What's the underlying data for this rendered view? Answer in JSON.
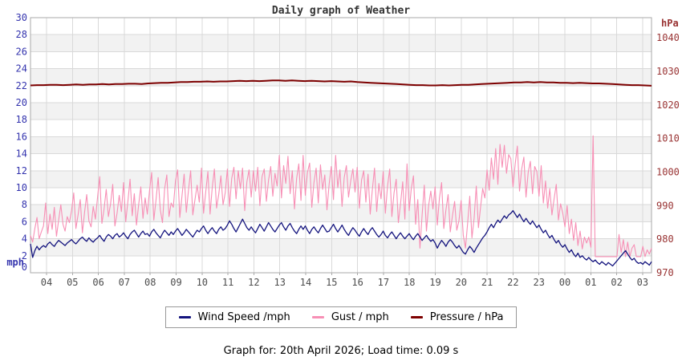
{
  "colors": {
    "band": "#f2f2f2",
    "grid": "#d9d9d9",
    "border": "#aaaaaa",
    "left_axis_text": "#3434ae",
    "right_axis_text": "#993333",
    "x_axis_text": "#4d4d4d",
    "title_text": "#333333",
    "wind": "#14147e",
    "gust": "#f78fb5",
    "pressure": "#7d0000"
  },
  "footer": {
    "caption": "Graph for: 20th April 2026; Load time: 0.09 s"
  },
  "chart_data": {
    "type": "line",
    "title": "Daily graph of Weather",
    "x_axis": {
      "labels": [
        "04",
        "05",
        "06",
        "07",
        "08",
        "09",
        "10",
        "11",
        "12",
        "13",
        "14",
        "15",
        "16",
        "17",
        "18",
        "19",
        "20",
        "21",
        "22",
        "23",
        "00",
        "01",
        "02",
        "03"
      ],
      "start_time": "03:30",
      "interval_minutes": 5
    },
    "y_left": {
      "unit": "mph",
      "min": 0,
      "max": 30,
      "tick_step": 2
    },
    "y_right": {
      "unit": "hPa",
      "min": 970,
      "max": 1046,
      "tick_step": 10,
      "tick_top": 1040
    },
    "series": [
      {
        "name": "Wind Speed /mph",
        "axis": "left",
        "color_key": "wind",
        "values": [
          3.4,
          1.8,
          2.6,
          3.1,
          2.7,
          3.0,
          3.2,
          3.0,
          3.4,
          3.6,
          3.3,
          3.1,
          3.5,
          3.8,
          3.6,
          3.4,
          3.2,
          3.5,
          3.7,
          3.9,
          3.6,
          3.4,
          3.7,
          4.0,
          4.2,
          3.9,
          3.7,
          4.1,
          3.8,
          3.6,
          3.9,
          4.1,
          4.4,
          4.0,
          3.7,
          4.2,
          4.5,
          4.3,
          4.0,
          4.4,
          4.6,
          4.2,
          4.4,
          4.7,
          4.3,
          4.0,
          4.5,
          4.8,
          5.0,
          4.6,
          4.2,
          4.6,
          4.9,
          4.5,
          4.6,
          4.3,
          4.8,
          5.1,
          4.7,
          4.4,
          4.1,
          4.6,
          5.0,
          4.7,
          4.4,
          4.8,
          4.5,
          4.9,
          5.2,
          4.8,
          4.4,
          4.7,
          5.1,
          4.8,
          4.5,
          4.2,
          4.6,
          5.0,
          4.8,
          5.2,
          5.5,
          5.0,
          4.6,
          5.0,
          5.3,
          4.9,
          4.6,
          5.1,
          5.4,
          5.0,
          5.2,
          5.6,
          6.1,
          5.7,
          5.2,
          4.8,
          5.3,
          5.8,
          6.3,
          5.8,
          5.3,
          5.0,
          5.4,
          5.0,
          4.7,
          5.2,
          5.7,
          5.3,
          4.9,
          5.4,
          5.9,
          5.5,
          5.1,
          4.8,
          5.2,
          5.6,
          5.9,
          5.4,
          5.0,
          5.5,
          5.8,
          5.3,
          4.9,
          4.6,
          5.1,
          5.5,
          5.1,
          5.5,
          5.0,
          4.6,
          5.1,
          5.4,
          5.0,
          4.7,
          5.2,
          5.6,
          5.2,
          4.8,
          4.9,
          5.3,
          5.7,
          5.2,
          4.8,
          5.2,
          5.6,
          5.1,
          4.7,
          4.4,
          4.9,
          5.3,
          5.0,
          4.6,
          4.3,
          4.8,
          5.2,
          4.8,
          4.5,
          5.0,
          5.3,
          4.9,
          4.5,
          4.2,
          4.5,
          4.9,
          4.4,
          4.1,
          4.5,
          4.8,
          4.4,
          4.0,
          4.4,
          4.7,
          4.3,
          4.0,
          4.3,
          4.6,
          4.2,
          3.9,
          4.3,
          4.6,
          4.2,
          3.8,
          4.1,
          4.4,
          4.0,
          3.7,
          3.9,
          3.5,
          2.9,
          3.4,
          3.8,
          3.5,
          3.1,
          3.6,
          3.9,
          3.6,
          3.2,
          2.9,
          3.2,
          2.8,
          2.4,
          2.2,
          2.7,
          3.1,
          2.8,
          2.4,
          2.9,
          3.3,
          3.7,
          4.1,
          4.4,
          4.8,
          5.3,
          5.7,
          5.3,
          5.8,
          6.2,
          5.9,
          6.3,
          6.7,
          6.4,
          6.8,
          7.0,
          7.3,
          6.9,
          6.5,
          6.9,
          6.4,
          6.0,
          6.4,
          6.0,
          5.7,
          6.1,
          5.7,
          5.3,
          5.6,
          5.1,
          4.7,
          5.0,
          4.5,
          4.1,
          4.4,
          3.9,
          3.5,
          3.8,
          3.3,
          3.0,
          3.3,
          2.8,
          2.4,
          2.7,
          2.2,
          1.9,
          2.3,
          1.8,
          2.0,
          1.7,
          1.5,
          1.8,
          1.5,
          1.3,
          1.5,
          1.2,
          1.0,
          1.3,
          1.1,
          0.9,
          1.2,
          1.0,
          0.8,
          1.1,
          1.4,
          1.7,
          2.0,
          2.3,
          2.6,
          2.2,
          1.8,
          1.5,
          1.7,
          1.3,
          1.1,
          1.2,
          1.0,
          1.3,
          1.1,
          0.9,
          1.3
        ]
      },
      {
        "name": "Gust / mph",
        "axis": "left",
        "color_key": "gust",
        "values": [
          4.4,
          3.6,
          5.2,
          6.5,
          4.0,
          4.8,
          5.5,
          8.2,
          4.6,
          6.9,
          5.1,
          7.7,
          4.3,
          6.2,
          8.0,
          5.7,
          4.9,
          6.6,
          5.9,
          7.3,
          9.4,
          5.2,
          6.8,
          8.6,
          4.7,
          7.1,
          9.2,
          6.1,
          5.4,
          7.8,
          6.3,
          8.9,
          11.3,
          5.8,
          7.5,
          9.8,
          6.6,
          8.1,
          10.4,
          5.5,
          7.0,
          9.1,
          7.2,
          10.6,
          6.0,
          8.4,
          11.0,
          6.7,
          9.3,
          5.6,
          8.0,
          10.1,
          6.4,
          8.8,
          6.9,
          9.6,
          11.8,
          6.2,
          8.5,
          11.2,
          7.4,
          5.9,
          9.9,
          11.5,
          6.6,
          8.2,
          7.7,
          10.8,
          12.1,
          6.5,
          9.0,
          11.6,
          7.1,
          9.7,
          12.0,
          6.8,
          8.6,
          10.3,
          8.3,
          12.3,
          7.0,
          9.5,
          11.9,
          6.9,
          10.0,
          12.2,
          7.6,
          9.2,
          11.4,
          8.0,
          9.4,
          12.2,
          7.8,
          11.1,
          12.4,
          8.7,
          12.0,
          9.9,
          12.3,
          7.3,
          10.7,
          12.1,
          8.9,
          12.0,
          9.6,
          12.4,
          7.9,
          11.3,
          12.2,
          8.4,
          10.9,
          12.5,
          9.0,
          11.7,
          10.2,
          13.8,
          8.8,
          12.6,
          10.5,
          13.7,
          9.3,
          12.0,
          7.5,
          11.1,
          12.8,
          8.5,
          13.8,
          9.1,
          11.8,
          12.9,
          7.7,
          10.6,
          12.3,
          8.2,
          12.7,
          9.8,
          11.5,
          7.4,
          10.4,
          12.5,
          8.6,
          13.8,
          10.0,
          12.1,
          7.8,
          11.2,
          12.6,
          8.9,
          10.8,
          12.2,
          9.5,
          12.4,
          7.6,
          10.9,
          12.0,
          8.3,
          11.6,
          6.9,
          9.8,
          12.3,
          7.2,
          10.5,
          8.7,
          11.9,
          7.0,
          10.2,
          12.2,
          6.6,
          9.4,
          11.0,
          5.9,
          8.1,
          10.7,
          6.3,
          12.8,
          7.3,
          9.9,
          11.4,
          5.7,
          8.6,
          2.9,
          6.8,
          10.3,
          4.9,
          7.9,
          9.6,
          7.5,
          10.1,
          5.6,
          8.8,
          10.6,
          5.2,
          7.4,
          9.2,
          4.8,
          6.7,
          8.4,
          5.0,
          6.1,
          8.5,
          4.4,
          2.9,
          5.8,
          9.0,
          4.1,
          6.4,
          10.2,
          5.3,
          7.7,
          9.9,
          8.8,
          12.1,
          9.7,
          13.5,
          11.0,
          14.6,
          10.4,
          15.1,
          12.4,
          15.0,
          11.7,
          13.9,
          13.4,
          10.1,
          12.8,
          14.9,
          9.6,
          12.2,
          13.6,
          8.9,
          11.8,
          13.1,
          9.3,
          12.5,
          11.9,
          9.0,
          12.6,
          8.2,
          10.8,
          7.6,
          9.9,
          6.8,
          8.7,
          10.4,
          6.2,
          8.1,
          7.0,
          5.4,
          7.9,
          4.6,
          6.3,
          3.8,
          5.9,
          3.2,
          4.9,
          2.8,
          4.2,
          3.5,
          4.2,
          3.0,
          16.1,
          1.9,
          1.9,
          1.9,
          1.9,
          1.9,
          1.9,
          1.9,
          1.9,
          1.9,
          1.9,
          1.9,
          4.5,
          2.4,
          3.9,
          1.9,
          3.6,
          1.9,
          2.9,
          3.3,
          1.9,
          1.9,
          1.9,
          3.1,
          1.9,
          2.7,
          2.2,
          2.9
        ]
      },
      {
        "name": "Pressure / hPa",
        "axis": "right",
        "color_key": "pressure",
        "interval_minutes": 15,
        "values": [
          1025.8,
          1025.9,
          1025.9,
          1026.0,
          1026.0,
          1025.9,
          1026.0,
          1026.1,
          1026.0,
          1026.1,
          1026.1,
          1026.2,
          1026.1,
          1026.2,
          1026.2,
          1026.3,
          1026.3,
          1026.2,
          1026.4,
          1026.5,
          1026.6,
          1026.6,
          1026.7,
          1026.8,
          1026.8,
          1026.9,
          1026.9,
          1027.0,
          1026.9,
          1027.0,
          1027.0,
          1027.1,
          1027.2,
          1027.1,
          1027.2,
          1027.1,
          1027.2,
          1027.3,
          1027.3,
          1027.2,
          1027.3,
          1027.2,
          1027.1,
          1027.2,
          1027.1,
          1027.0,
          1027.1,
          1027.0,
          1026.9,
          1027.0,
          1026.8,
          1026.7,
          1026.6,
          1026.5,
          1026.4,
          1026.3,
          1026.2,
          1026.1,
          1026.0,
          1025.9,
          1025.9,
          1025.8,
          1025.8,
          1025.9,
          1025.8,
          1025.9,
          1026.0,
          1026.0,
          1026.1,
          1026.2,
          1026.3,
          1026.4,
          1026.5,
          1026.6,
          1026.7,
          1026.7,
          1026.8,
          1026.7,
          1026.8,
          1026.7,
          1026.7,
          1026.6,
          1026.6,
          1026.5,
          1026.6,
          1026.5,
          1026.4,
          1026.4,
          1026.3,
          1026.2,
          1026.1,
          1026.0,
          1025.9,
          1025.9,
          1025.8,
          1025.7
        ]
      }
    ]
  }
}
